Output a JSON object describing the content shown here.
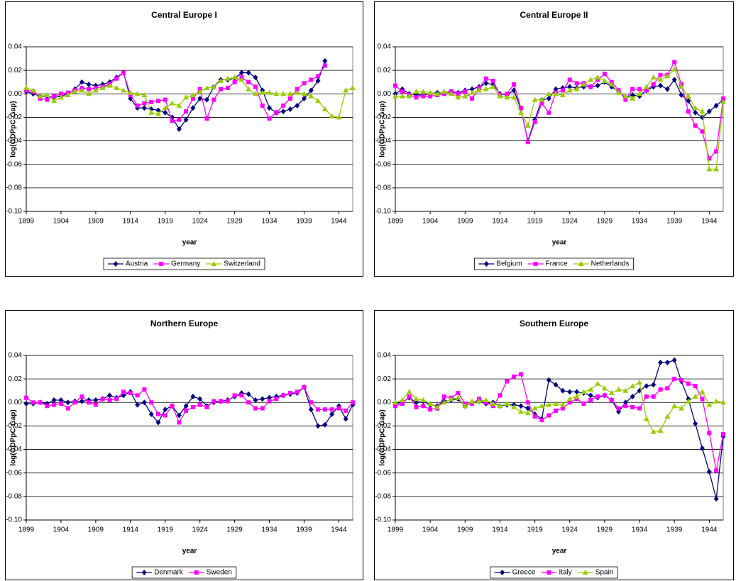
{
  "chart_data": [
    {
      "type": "line",
      "title": "Central Europe I",
      "x_label": "year",
      "y_label": "log(GDPpC-Gap)",
      "legend": "bottom",
      "grid": true,
      "xlim": [
        1899,
        1946
      ],
      "ylim": [
        -0.1,
        0.04
      ],
      "xticks": [
        1899,
        1904,
        1909,
        1914,
        1919,
        1924,
        1929,
        1934,
        1939,
        1944
      ],
      "yticks": [
        0.04,
        0.02,
        {
          "value": 0,
          "label": "0.00"
        },
        -0.02,
        -0.04,
        -0.06,
        -0.08,
        {
          "value": -0.1,
          "label": "-0.10"
        }
      ],
      "x": [
        1899,
        1900,
        1901,
        1902,
        1903,
        1904,
        1905,
        1906,
        1907,
        1908,
        1909,
        1910,
        1911,
        1912,
        1913,
        1914,
        1915,
        1916,
        1917,
        1918,
        1919,
        1920,
        1921,
        1922,
        1923,
        1924,
        1925,
        1926,
        1927,
        1928,
        1929,
        1930,
        1931,
        1932,
        1933,
        1934,
        1935,
        1936,
        1937,
        1938,
        1939,
        1940,
        1941,
        1942,
        1943,
        1944,
        1945,
        1946
      ],
      "series": [
        {
          "name": "Austria",
          "color": "#000080",
          "marker": "diamond",
          "values": [
            0.002,
            0.0,
            -0.002,
            -0.002,
            -0.003,
            -0.002,
            0.0,
            0.004,
            0.01,
            0.008,
            0.007,
            0.008,
            0.01,
            0.014,
            0.018,
            -0.004,
            -0.012,
            -0.012,
            -0.013,
            -0.014,
            -0.016,
            -0.02,
            -0.03,
            -0.022,
            -0.012,
            -0.004,
            -0.005,
            0.006,
            0.012,
            0.012,
            0.013,
            0.018,
            0.018,
            0.014,
            0.003,
            -0.012,
            -0.016,
            -0.015,
            -0.013,
            -0.01,
            -0.004,
            0.003,
            0.011,
            0.028,
            null,
            null,
            null,
            null
          ]
        },
        {
          "name": "Germany",
          "color": "#ff00ff",
          "marker": "square",
          "values": [
            0.003,
            0.002,
            -0.004,
            -0.005,
            -0.002,
            0.0,
            0.001,
            0.003,
            0.005,
            0.004,
            0.005,
            0.006,
            0.008,
            0.013,
            0.018,
            -0.001,
            -0.01,
            -0.008,
            -0.007,
            -0.006,
            -0.005,
            -0.023,
            -0.022,
            -0.015,
            -0.004,
            0.004,
            -0.021,
            -0.005,
            0.004,
            0.005,
            0.01,
            0.014,
            0.01,
            0.006,
            -0.01,
            -0.021,
            -0.016,
            -0.01,
            -0.004,
            0.004,
            0.009,
            0.012,
            0.015,
            0.024,
            null,
            null,
            null,
            null
          ]
        },
        {
          "name": "Switzerland",
          "color": "#99cc00",
          "marker": "triangle",
          "values": [
            0.005,
            0.003,
            -0.002,
            -0.001,
            -0.006,
            -0.003,
            -0.001,
            0.002,
            0.003,
            0.0,
            0.003,
            0.005,
            0.007,
            0.005,
            0.003,
            0.001,
            0.0,
            -0.001,
            -0.016,
            -0.017,
            -0.012,
            -0.008,
            -0.01,
            -0.003,
            -0.001,
            0.002,
            0.005,
            0.006,
            0.011,
            0.013,
            0.014,
            0.012,
            0.004,
            0.0,
            0.001,
            0.001,
            0.0,
            0.0,
            0.0,
            0.001,
            0.0,
            -0.002,
            -0.006,
            -0.013,
            -0.019,
            -0.02,
            0.003,
            0.005
          ]
        }
      ]
    },
    {
      "type": "line",
      "title": "Central Europe II",
      "x_label": "year",
      "y_label": "log(GDPpC-Gap)",
      "legend": "bottom",
      "grid": true,
      "xlim": [
        1899,
        1946
      ],
      "ylim": [
        -0.1,
        0.04
      ],
      "xticks": [
        1899,
        1904,
        1909,
        1914,
        1919,
        1924,
        1929,
        1934,
        1939,
        1944
      ],
      "yticks": [
        0.04,
        0.02,
        {
          "value": 0,
          "label": "0.00"
        },
        -0.02,
        -0.04,
        -0.06,
        -0.08,
        {
          "value": -0.1,
          "label": "-0.10"
        }
      ],
      "x": [
        1899,
        1900,
        1901,
        1902,
        1903,
        1904,
        1905,
        1906,
        1907,
        1908,
        1909,
        1910,
        1911,
        1912,
        1913,
        1914,
        1915,
        1916,
        1917,
        1918,
        1919,
        1920,
        1921,
        1922,
        1923,
        1924,
        1925,
        1926,
        1927,
        1928,
        1929,
        1930,
        1931,
        1932,
        1933,
        1934,
        1935,
        1936,
        1937,
        1938,
        1939,
        1940,
        1941,
        1942,
        1943,
        1944,
        1945,
        1946
      ],
      "series": [
        {
          "name": "Belgium",
          "color": "#000080",
          "marker": "diamond",
          "values": [
            0.0,
            0.004,
            0.0,
            -0.001,
            -0.001,
            0.0,
            0.001,
            0.001,
            0.002,
            0.001,
            0.003,
            0.004,
            0.006,
            0.009,
            0.008,
            0.0,
            -0.001,
            0.003,
            -0.013,
            -0.04,
            -0.022,
            -0.005,
            -0.004,
            0.004,
            0.005,
            0.006,
            0.005,
            0.006,
            0.006,
            0.007,
            0.01,
            0.006,
            0.002,
            -0.003,
            -0.001,
            -0.002,
            0.003,
            0.006,
            0.007,
            0.004,
            0.012,
            -0.001,
            -0.006,
            -0.016,
            -0.02,
            -0.015,
            -0.01,
            -0.005
          ]
        },
        {
          "name": "France",
          "color": "#ff00ff",
          "marker": "square",
          "values": [
            0.007,
            0.002,
            -0.001,
            -0.003,
            -0.002,
            -0.002,
            -0.001,
            0.0,
            0.002,
            0.0,
            0.002,
            -0.004,
            0.005,
            0.013,
            0.011,
            -0.001,
            0.0,
            0.008,
            -0.012,
            -0.041,
            -0.024,
            -0.008,
            -0.016,
            0.001,
            0.003,
            0.012,
            0.009,
            0.009,
            0.006,
            0.012,
            0.017,
            0.01,
            0.003,
            -0.005,
            0.004,
            0.004,
            0.003,
            0.008,
            0.016,
            0.016,
            0.027,
            0.008,
            -0.015,
            -0.027,
            -0.032,
            -0.055,
            -0.049,
            -0.004
          ]
        },
        {
          "name": "Netherlands",
          "color": "#99cc00",
          "marker": "triangle",
          "values": [
            -0.002,
            -0.002,
            -0.002,
            0.002,
            0.002,
            0.001,
            0.0,
            0.002,
            0.0,
            -0.003,
            -0.002,
            0.001,
            0.003,
            0.004,
            0.006,
            -0.002,
            -0.003,
            -0.003,
            -0.016,
            -0.027,
            -0.005,
            -0.005,
            0.0,
            0.0,
            -0.001,
            0.003,
            0.004,
            0.008,
            0.012,
            0.014,
            0.011,
            0.008,
            0.001,
            -0.002,
            -0.004,
            0.0,
            0.006,
            0.014,
            0.012,
            0.015,
            0.021,
            0.006,
            -0.002,
            -0.012,
            -0.015,
            -0.064,
            -0.064,
            -0.007
          ]
        }
      ]
    },
    {
      "type": "line",
      "title": "Northern Europe",
      "x_label": "year",
      "y_label": "log(GDPpC-Gap)",
      "legend": "bottom",
      "grid": true,
      "xlim": [
        1899,
        1946
      ],
      "ylim": [
        -0.1,
        0.04
      ],
      "xticks": [
        1899,
        1904,
        1909,
        1914,
        1919,
        1924,
        1929,
        1934,
        1939,
        1944
      ],
      "yticks": [
        0.04,
        0.02,
        {
          "value": 0,
          "label": "0.00"
        },
        -0.02,
        -0.04,
        -0.06,
        -0.08,
        {
          "value": -0.1,
          "label": "-0.10"
        }
      ],
      "x": [
        1899,
        1900,
        1901,
        1902,
        1903,
        1904,
        1905,
        1906,
        1907,
        1908,
        1909,
        1910,
        1911,
        1912,
        1913,
        1914,
        1915,
        1916,
        1917,
        1918,
        1919,
        1920,
        1921,
        1922,
        1923,
        1924,
        1925,
        1926,
        1927,
        1928,
        1929,
        1930,
        1931,
        1932,
        1933,
        1934,
        1935,
        1936,
        1937,
        1938,
        1939,
        1940,
        1941,
        1942,
        1943,
        1944,
        1945,
        1946
      ],
      "series": [
        {
          "name": "Denmark",
          "color": "#000080",
          "marker": "diamond",
          "values": [
            -0.001,
            -0.001,
            0.0,
            -0.001,
            0.002,
            0.002,
            0.0,
            0.001,
            0.001,
            0.002,
            0.002,
            0.003,
            0.006,
            0.004,
            0.006,
            0.009,
            -0.002,
            0.0,
            -0.01,
            -0.017,
            -0.006,
            -0.003,
            -0.011,
            -0.003,
            0.005,
            0.003,
            -0.003,
            0.0,
            0.001,
            0.002,
            0.005,
            0.008,
            0.007,
            0.002,
            0.003,
            0.004,
            0.005,
            0.006,
            0.007,
            0.008,
            0.013,
            -0.006,
            -0.02,
            -0.019,
            -0.01,
            -0.003,
            -0.014,
            -0.002
          ]
        },
        {
          "name": "Sweden",
          "color": "#ff00ff",
          "marker": "square",
          "values": [
            0.004,
            0.0,
            0.0,
            -0.003,
            -0.002,
            -0.001,
            -0.005,
            0.0,
            0.005,
            0.0,
            -0.002,
            0.003,
            0.002,
            0.003,
            0.009,
            0.008,
            0.006,
            0.011,
            0.0,
            -0.01,
            -0.011,
            -0.003,
            -0.017,
            -0.007,
            -0.004,
            -0.002,
            -0.004,
            0.001,
            0.001,
            0.001,
            0.006,
            0.006,
            0.0,
            -0.005,
            -0.005,
            0.001,
            0.003,
            0.006,
            0.008,
            0.009,
            0.013,
            0.0,
            -0.006,
            -0.006,
            -0.006,
            -0.005,
            -0.007,
            0.0
          ]
        }
      ]
    },
    {
      "type": "line",
      "title": "Southern Europe",
      "x_label": "year",
      "y_label": "log(GDPpC-Gap)",
      "legend": "bottom",
      "grid": true,
      "xlim": [
        1899,
        1946
      ],
      "ylim": [
        -0.1,
        0.04
      ],
      "xticks": [
        1899,
        1904,
        1909,
        1914,
        1919,
        1924,
        1929,
        1934,
        1939,
        1944
      ],
      "yticks": [
        0.04,
        0.02,
        {
          "value": 0,
          "label": "0.00"
        },
        -0.02,
        -0.04,
        -0.06,
        -0.08,
        {
          "value": -0.1,
          "label": "-0.10"
        }
      ],
      "x": [
        1899,
        1900,
        1901,
        1902,
        1903,
        1904,
        1905,
        1906,
        1907,
        1908,
        1909,
        1910,
        1911,
        1912,
        1913,
        1914,
        1915,
        1916,
        1917,
        1918,
        1919,
        1920,
        1921,
        1922,
        1923,
        1924,
        1925,
        1926,
        1927,
        1928,
        1929,
        1930,
        1931,
        1932,
        1933,
        1934,
        1935,
        1936,
        1937,
        1938,
        1939,
        1940,
        1941,
        1942,
        1943,
        1944,
        1945,
        1946
      ],
      "series": [
        {
          "name": "Greece",
          "color": "#000080",
          "marker": "diamond",
          "values": [
            -0.001,
            0.0,
            0.004,
            0.0,
            0.001,
            -0.002,
            -0.003,
            0.001,
            0.002,
            0.003,
            -0.003,
            0.0,
            0.001,
            -0.001,
            0.0,
            -0.003,
            -0.002,
            -0.002,
            -0.003,
            -0.005,
            -0.01,
            -0.014,
            0.019,
            0.015,
            0.01,
            0.009,
            0.009,
            0.008,
            0.006,
            0.004,
            0.006,
            0.002,
            -0.008,
            0.0,
            0.005,
            0.01,
            0.014,
            0.015,
            0.034,
            0.034,
            0.036,
            0.018,
            0.003,
            -0.018,
            -0.039,
            -0.059,
            -0.082,
            -0.029
          ]
        },
        {
          "name": "Italy",
          "color": "#ff00ff",
          "marker": "square",
          "values": [
            -0.003,
            -0.001,
            0.005,
            -0.004,
            -0.003,
            -0.006,
            -0.005,
            0.005,
            0.004,
            0.008,
            -0.001,
            -0.001,
            0.003,
            0.0,
            -0.003,
            0.006,
            0.018,
            0.022,
            0.024,
            0.0,
            -0.012,
            -0.015,
            -0.011,
            -0.007,
            -0.005,
            0.0,
            0.003,
            -0.001,
            0.002,
            0.005,
            0.006,
            0.002,
            -0.005,
            -0.003,
            -0.004,
            -0.005,
            0.005,
            0.005,
            0.011,
            0.012,
            0.02,
            0.019,
            0.016,
            0.014,
            0.003,
            -0.026,
            -0.058,
            -0.027
          ]
        },
        {
          "name": "Spain",
          "color": "#99cc00",
          "marker": "triangle",
          "values": [
            0.0,
            0.002,
            0.009,
            0.003,
            0.002,
            -0.001,
            -0.004,
            0.0,
            0.003,
            0.004,
            -0.003,
            0.001,
            0.001,
            0.002,
            -0.001,
            -0.003,
            -0.001,
            -0.004,
            -0.008,
            -0.009,
            -0.005,
            -0.003,
            -0.002,
            -0.001,
            -0.002,
            0.003,
            0.005,
            0.009,
            0.011,
            0.016,
            0.012,
            0.008,
            0.011,
            0.01,
            0.014,
            0.017,
            -0.014,
            -0.025,
            -0.024,
            -0.012,
            -0.003,
            -0.005,
            0.001,
            0.005,
            0.009,
            -0.002,
            0.001,
            0.0
          ]
        }
      ]
    }
  ]
}
